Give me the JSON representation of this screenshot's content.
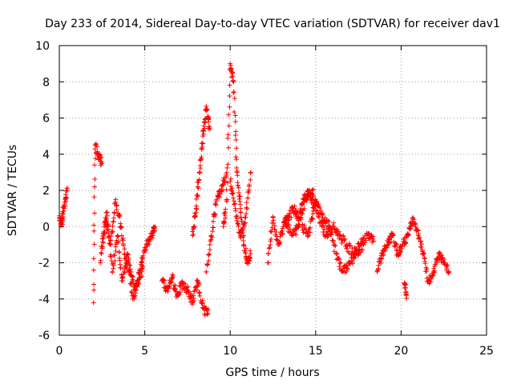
{
  "chart_data": {
    "type": "scatter",
    "title": "Day 233 of 2014, Sidereal Day-to-day VTEC variation (SDTVAR) for receiver dav1",
    "xlabel": "GPS time / hours",
    "ylabel": "SDTVAR / TECUs",
    "xlim": [
      0,
      25
    ],
    "ylim": [
      -6,
      10
    ],
    "xticks": [
      "0",
      "5",
      "10",
      "15",
      "20",
      "25"
    ],
    "yticks": [
      "-6",
      "-4",
      "-2",
      "0",
      "2",
      "4",
      "6",
      "8",
      "10"
    ],
    "grid": true,
    "marker": "+",
    "color": "#ff0000",
    "series": [
      {
        "name": "SDTVAR",
        "segments": [
          {
            "x": [
              0.0,
              0.15,
              0.3,
              0.45
            ],
            "y": [
              0.5,
              0.2,
              1.2,
              2.0
            ]
          },
          {
            "x": [
              2.0,
              2.1,
              2.3,
              2.5
            ],
            "y": [
              -4.2,
              4.5,
              4.0,
              3.5
            ]
          },
          {
            "x": [
              2.4,
              2.7,
              3.0,
              3.3,
              3.6,
              3.9,
              4.2,
              4.5,
              4.8,
              5.1,
              5.4,
              5.6
            ],
            "y": [
              -2.0,
              0.5,
              -1.0,
              1.5,
              0.0,
              -2.0,
              -2.5,
              -3.5,
              -2.0,
              -1.0,
              -0.5,
              0.0
            ]
          },
          {
            "x": [
              2.5,
              2.8,
              3.1,
              3.4,
              3.7,
              4.0,
              4.3,
              4.6,
              4.9
            ],
            "y": [
              -1.2,
              0.8,
              -2.5,
              -0.5,
              -3.0,
              -1.5,
              -4.0,
              -3.0,
              -2.2
            ]
          },
          {
            "x": [
              6.0,
              6.3,
              6.6,
              6.9,
              7.2,
              7.5,
              7.8,
              8.1,
              8.4,
              8.7
            ],
            "y": [
              -3.0,
              -3.5,
              -2.8,
              -3.8,
              -3.2,
              -3.5,
              -4.2,
              -3.0,
              -4.5,
              -4.8
            ]
          },
          {
            "x": [
              7.8,
              8.0,
              8.2,
              8.4,
              8.6,
              8.8
            ],
            "y": [
              -0.5,
              1.0,
              3.0,
              5.0,
              6.5,
              5.5
            ]
          },
          {
            "x": [
              8.6,
              8.9,
              9.2,
              9.5,
              9.8
            ],
            "y": [
              -2.5,
              -0.5,
              1.5,
              2.0,
              3.0
            ]
          },
          {
            "x": [
              9.6,
              9.8,
              10.0,
              10.2,
              10.4,
              10.6,
              10.8,
              11.0,
              11.2
            ],
            "y": [
              0.0,
              1.5,
              9.0,
              8.0,
              3.0,
              1.0,
              -1.0,
              -2.0,
              -1.5
            ]
          },
          {
            "x": [
              10.0,
              10.3,
              10.6,
              10.9,
              11.2
            ],
            "y": [
              2.5,
              1.0,
              -0.5,
              0.5,
              3.0
            ]
          },
          {
            "x": [
              12.2,
              12.5,
              12.8,
              13.1,
              13.4,
              13.7,
              14.0,
              14.3,
              14.6,
              14.9
            ],
            "y": [
              -2.0,
              0.5,
              -1.0,
              0.0,
              0.5,
              1.0,
              0.5,
              1.5,
              2.0,
              1.0
            ]
          },
          {
            "x": [
              13.2,
              13.6,
              14.0,
              14.4,
              14.8,
              15.2,
              15.6,
              16.0,
              16.4,
              16.8,
              17.2,
              17.6,
              18.0,
              18.4
            ],
            "y": [
              0.5,
              -0.5,
              0.0,
              1.5,
              2.0,
              0.5,
              -0.5,
              0.0,
              -0.5,
              -1.0,
              -1.5,
              -1.0,
              -0.5,
              -0.8
            ]
          },
          {
            "x": [
              14.2,
              14.6,
              15.0,
              15.4,
              15.8,
              16.2,
              16.6,
              17.0,
              17.4,
              17.8
            ],
            "y": [
              0.0,
              -0.5,
              1.5,
              0.5,
              0.0,
              -1.5,
              -2.5,
              -2.0,
              -1.5,
              -1.0
            ]
          },
          {
            "x": [
              18.6,
              18.9,
              19.2,
              19.5,
              19.8,
              20.1,
              20.4,
              20.7,
              21.0,
              21.3,
              21.6,
              21.9,
              22.2,
              22.5,
              22.8
            ],
            "y": [
              -2.5,
              -1.5,
              -1.0,
              -0.5,
              -1.5,
              -1.0,
              -0.5,
              0.5,
              -0.5,
              -1.5,
              -3.0,
              -2.5,
              -1.5,
              -2.0,
              -2.5
            ]
          },
          {
            "x": [
              20.2,
              20.3
            ],
            "y": [
              -3.1,
              -3.8
            ]
          }
        ]
      }
    ]
  }
}
